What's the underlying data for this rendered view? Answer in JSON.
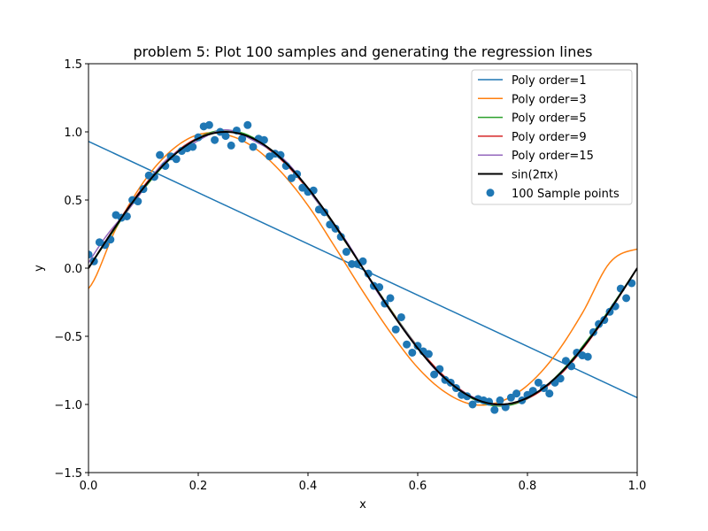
{
  "chart_data": {
    "type": "line",
    "title": "problem 5: Plot 100 samples and generating the regression lines",
    "xlabel": "x",
    "ylabel": "y",
    "xlim": [
      0,
      1
    ],
    "ylim": [
      -1.5,
      1.5
    ],
    "x_ticks": [
      "0.0",
      "0.2",
      "0.4",
      "0.6",
      "0.8",
      "1.0"
    ],
    "y_ticks": [
      "−1.5",
      "−1.0",
      "−0.5",
      "0.0",
      "0.5",
      "1.0",
      "1.5"
    ],
    "legend_position": "upper-right",
    "series": [
      {
        "name": "Poly order=1",
        "color": "#1f77b4",
        "kind": "fit",
        "order": 1
      },
      {
        "name": "Poly order=3",
        "color": "#ff7f0e",
        "kind": "fit",
        "order": 3
      },
      {
        "name": "Poly order=5",
        "color": "#2ca02c",
        "kind": "fit",
        "order": 5
      },
      {
        "name": "Poly order=9",
        "color": "#d62728",
        "kind": "fit",
        "order": 9
      },
      {
        "name": "Poly order=15",
        "color": "#9467bd",
        "kind": "fit",
        "order": 15
      },
      {
        "name": "sin(2πx)",
        "color": "#000000",
        "kind": "true"
      }
    ],
    "linear_fit": {
      "x": [
        0,
        1
      ],
      "y": [
        0.93,
        -0.95
      ]
    },
    "cubic_fit": {
      "x": [
        0,
        0.05,
        0.1,
        0.15,
        0.2,
        0.25,
        0.3,
        0.35,
        0.4,
        0.45,
        0.5,
        0.55,
        0.6,
        0.65,
        0.7,
        0.75,
        0.8,
        0.85,
        0.9,
        0.95,
        1.0
      ],
      "y": [
        -0.15,
        0.29,
        0.63,
        0.86,
        0.98,
        0.98,
        0.89,
        0.71,
        0.46,
        0.15,
        -0.17,
        -0.47,
        -0.73,
        -0.91,
        -1.0,
        -0.98,
        -0.86,
        -0.64,
        -0.33,
        0.04,
        0.14
      ]
    },
    "scatter": {
      "name": "100 Sample points",
      "color": "#1f77b4",
      "x": [
        0.0,
        0.01,
        0.02,
        0.03,
        0.04,
        0.05,
        0.06,
        0.07,
        0.08,
        0.09,
        0.1,
        0.11,
        0.12,
        0.13,
        0.14,
        0.15,
        0.16,
        0.17,
        0.18,
        0.19,
        0.2,
        0.21,
        0.22,
        0.23,
        0.24,
        0.25,
        0.26,
        0.27,
        0.28,
        0.29,
        0.3,
        0.31,
        0.32,
        0.33,
        0.34,
        0.35,
        0.36,
        0.37,
        0.38,
        0.39,
        0.4,
        0.41,
        0.42,
        0.43,
        0.44,
        0.45,
        0.46,
        0.47,
        0.48,
        0.49,
        0.5,
        0.51,
        0.52,
        0.53,
        0.54,
        0.55,
        0.56,
        0.57,
        0.58,
        0.59,
        0.6,
        0.61,
        0.62,
        0.63,
        0.64,
        0.65,
        0.66,
        0.67,
        0.68,
        0.69,
        0.7,
        0.71,
        0.72,
        0.73,
        0.74,
        0.75,
        0.76,
        0.77,
        0.78,
        0.79,
        0.8,
        0.81,
        0.82,
        0.83,
        0.84,
        0.85,
        0.86,
        0.87,
        0.88,
        0.89,
        0.9,
        0.91,
        0.92,
        0.93,
        0.94,
        0.95,
        0.96,
        0.97,
        0.98,
        0.99
      ],
      "y": [
        0.1,
        0.05,
        0.19,
        0.17,
        0.21,
        0.39,
        0.37,
        0.38,
        0.5,
        0.49,
        0.58,
        0.68,
        0.67,
        0.83,
        0.75,
        0.82,
        0.8,
        0.86,
        0.88,
        0.89,
        0.96,
        1.04,
        1.05,
        0.94,
        1.0,
        0.97,
        0.9,
        1.01,
        0.95,
        1.05,
        0.89,
        0.95,
        0.94,
        0.82,
        0.84,
        0.83,
        0.75,
        0.66,
        0.69,
        0.59,
        0.56,
        0.57,
        0.43,
        0.41,
        0.32,
        0.29,
        0.23,
        0.12,
        0.03,
        0.03,
        0.05,
        -0.04,
        -0.13,
        -0.14,
        -0.26,
        -0.22,
        -0.45,
        -0.36,
        -0.56,
        -0.62,
        -0.57,
        -0.61,
        -0.63,
        -0.78,
        -0.74,
        -0.82,
        -0.84,
        -0.88,
        -0.93,
        -0.94,
        -1.0,
        -0.96,
        -0.97,
        -0.98,
        -1.04,
        -0.97,
        -1.02,
        -0.95,
        -0.92,
        -0.97,
        -0.93,
        -0.9,
        -0.84,
        -0.88,
        -0.92,
        -0.84,
        -0.81,
        -0.68,
        -0.72,
        -0.62,
        -0.64,
        -0.65,
        -0.47,
        -0.41,
        -0.38,
        -0.32,
        -0.28,
        -0.15,
        -0.22,
        -0.11
      ]
    }
  }
}
